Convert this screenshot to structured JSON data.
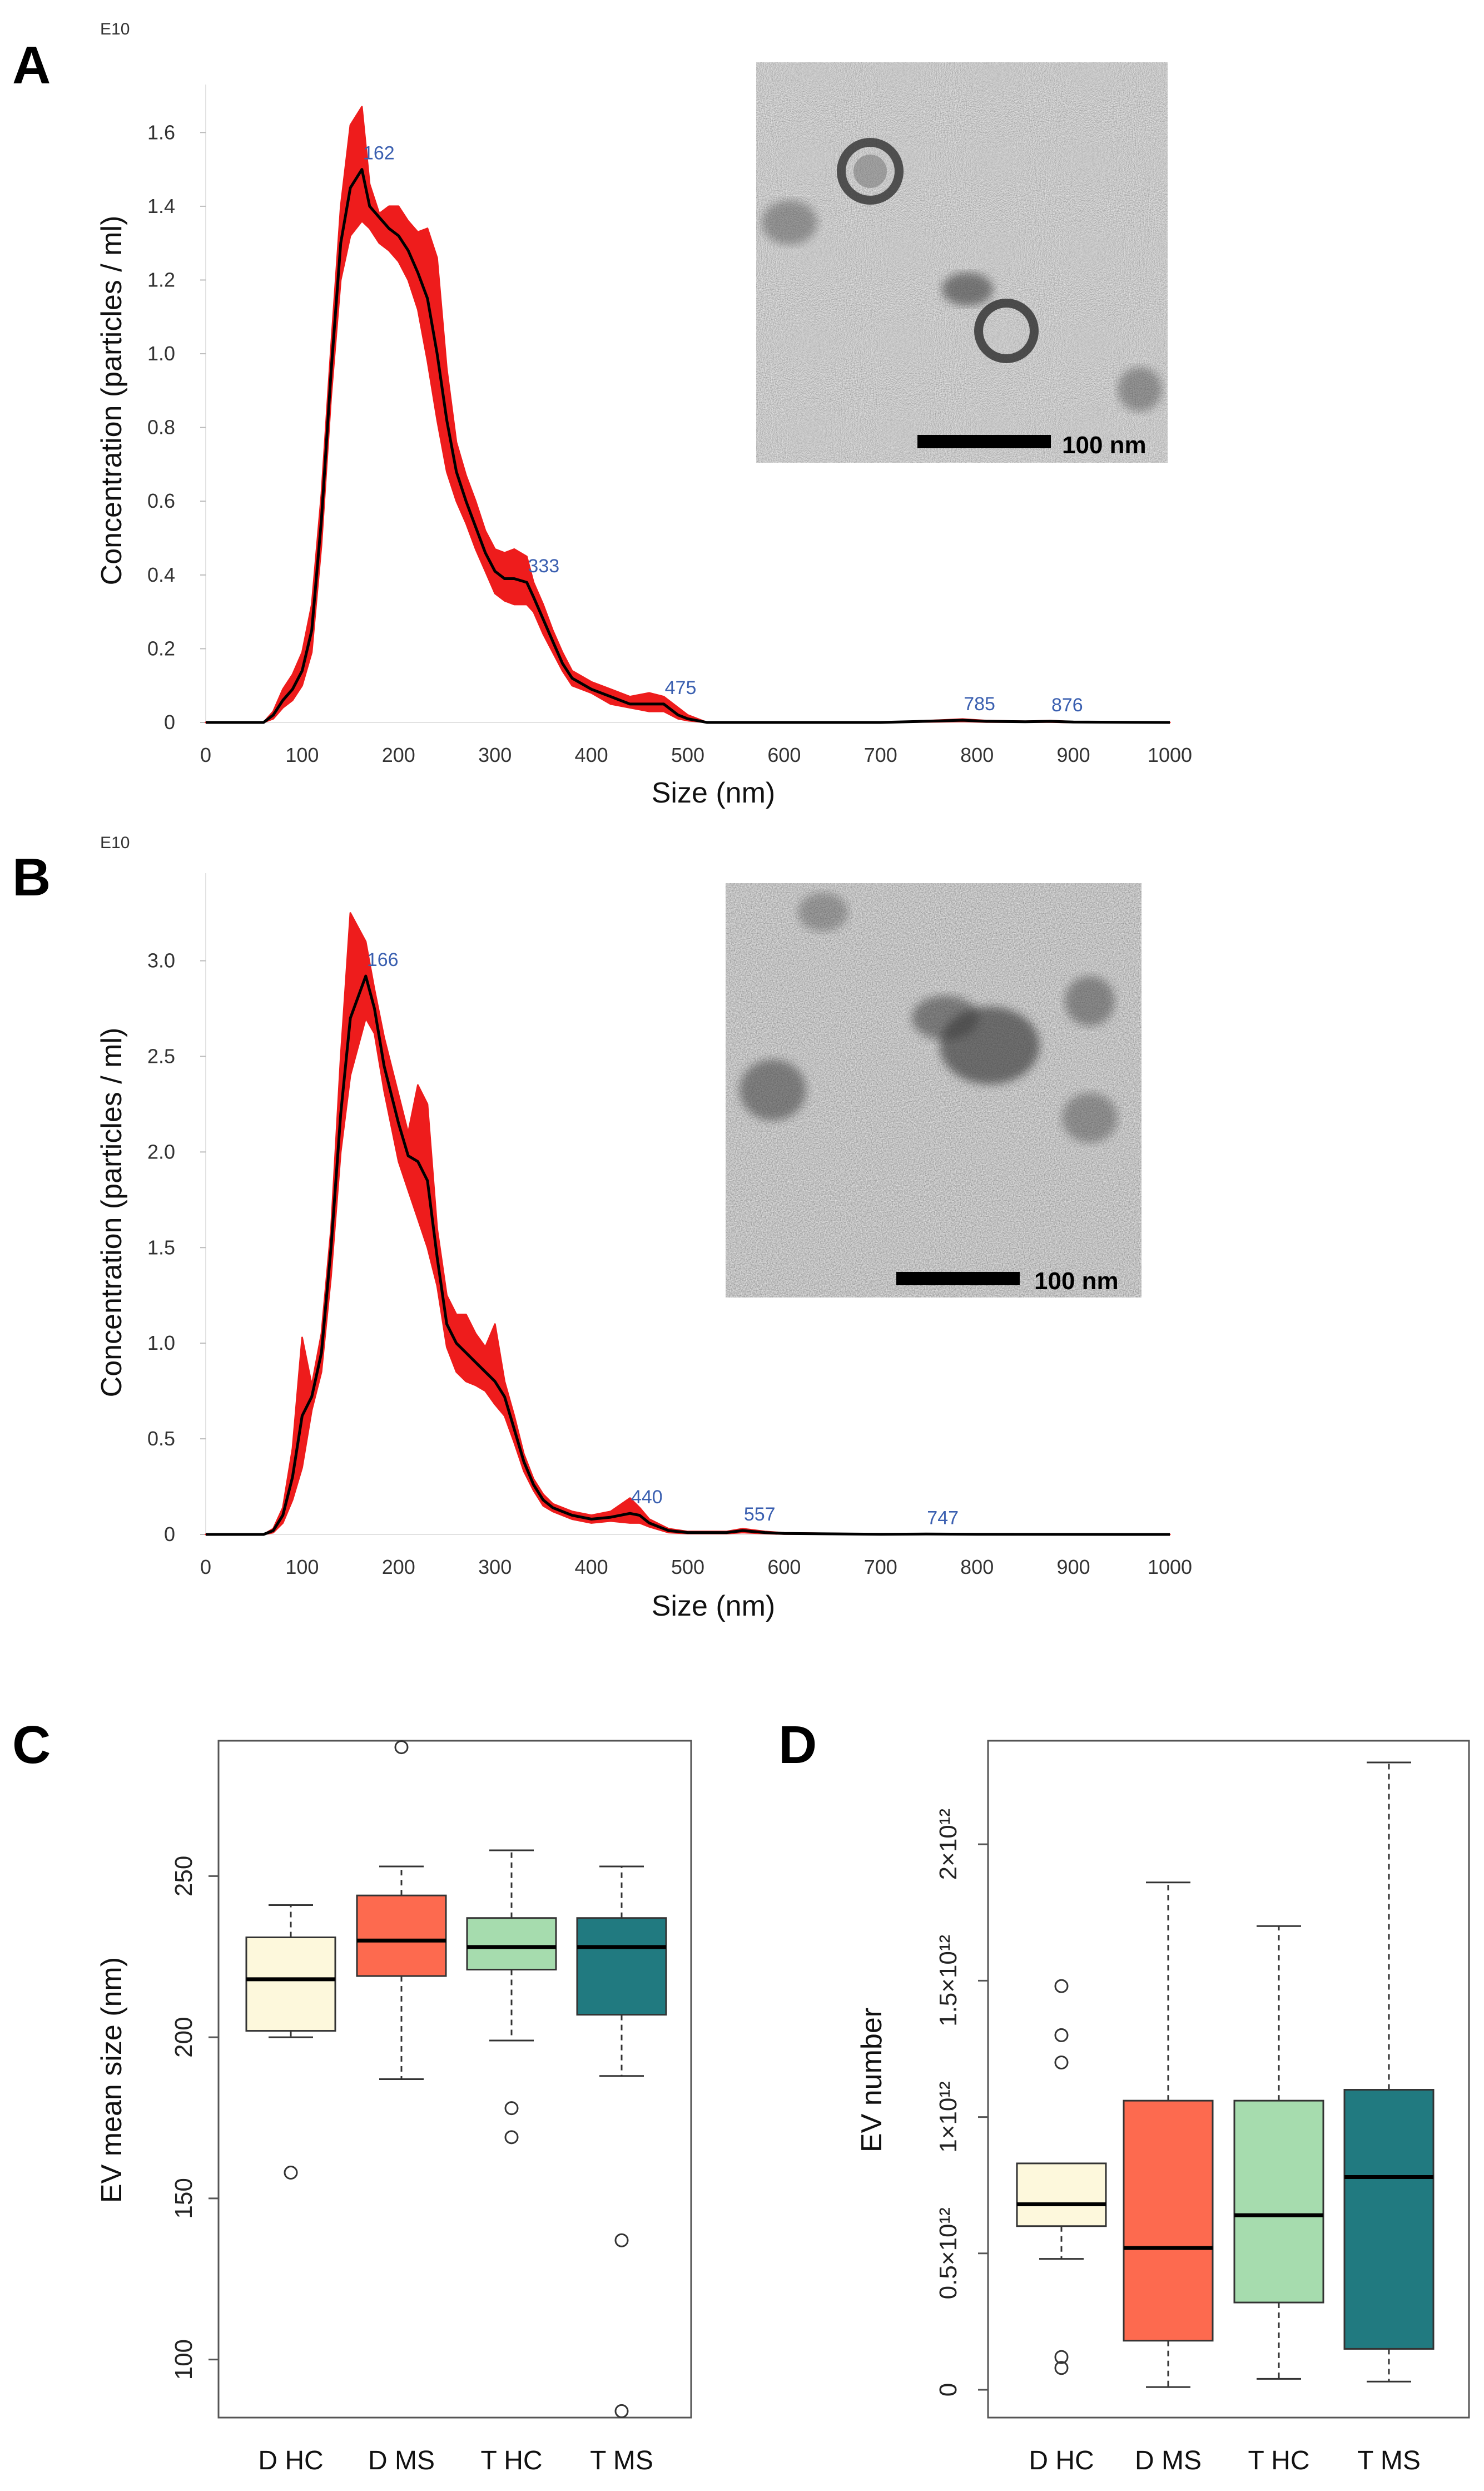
{
  "panels": {
    "A": "A",
    "B": "B",
    "C": "C",
    "D": "D"
  },
  "chart_data": [
    {
      "id": "A",
      "type": "area",
      "exponent_label": "E10",
      "xlabel": "Size (nm)",
      "ylabel": "Concentration (particles / ml)",
      "xlim": [
        0,
        1000
      ],
      "ylim": [
        0,
        1.7
      ],
      "xticks": [
        0,
        100,
        200,
        300,
        400,
        500,
        600,
        700,
        800,
        900,
        1000
      ],
      "yticks": [
        0,
        0.2,
        0.4,
        0.6,
        0.8,
        1.0,
        1.2,
        1.4,
        1.6
      ],
      "ytick_labels": [
        "0",
        "0.2",
        "0.4",
        "0.6",
        "0.8",
        "1.0",
        "1.2",
        "1.4",
        "1.6"
      ],
      "series": [
        {
          "name": "mean",
          "x": [
            0,
            60,
            70,
            80,
            90,
            100,
            110,
            120,
            130,
            140,
            150,
            162,
            170,
            180,
            190,
            200,
            210,
            220,
            230,
            240,
            250,
            260,
            270,
            280,
            290,
            300,
            310,
            320,
            333,
            340,
            350,
            360,
            370,
            380,
            400,
            420,
            440,
            460,
            475,
            490,
            500,
            520,
            600,
            700,
            760,
            785,
            810,
            850,
            876,
            900,
            1000
          ],
          "y": [
            0,
            0,
            0.02,
            0.06,
            0.09,
            0.14,
            0.25,
            0.55,
            0.95,
            1.3,
            1.45,
            1.5,
            1.4,
            1.37,
            1.34,
            1.32,
            1.28,
            1.22,
            1.15,
            1.0,
            0.82,
            0.68,
            0.6,
            0.53,
            0.46,
            0.41,
            0.39,
            0.39,
            0.38,
            0.34,
            0.28,
            0.22,
            0.16,
            0.12,
            0.09,
            0.07,
            0.05,
            0.05,
            0.05,
            0.02,
            0.01,
            0,
            0,
            0,
            0.004,
            0.006,
            0.003,
            0.002,
            0.003,
            0.001,
            0
          ]
        },
        {
          "name": "error_upper",
          "y": [
            0,
            0,
            0.03,
            0.09,
            0.13,
            0.19,
            0.32,
            0.62,
            1.02,
            1.4,
            1.62,
            1.67,
            1.46,
            1.38,
            1.4,
            1.4,
            1.36,
            1.33,
            1.34,
            1.26,
            0.96,
            0.76,
            0.67,
            0.6,
            0.52,
            0.47,
            0.46,
            0.47,
            0.45,
            0.38,
            0.32,
            0.25,
            0.19,
            0.14,
            0.11,
            0.09,
            0.07,
            0.08,
            0.07,
            0.04,
            0.02,
            0,
            0,
            0,
            0.006,
            0.009,
            0.005,
            0.003,
            0.005,
            0.002,
            0
          ]
        },
        {
          "name": "error_lower",
          "y": [
            0,
            0,
            0.01,
            0.04,
            0.06,
            0.1,
            0.19,
            0.48,
            0.88,
            1.2,
            1.32,
            1.36,
            1.34,
            1.3,
            1.28,
            1.25,
            1.2,
            1.12,
            0.98,
            0.82,
            0.68,
            0.6,
            0.54,
            0.47,
            0.41,
            0.35,
            0.33,
            0.32,
            0.32,
            0.3,
            0.24,
            0.19,
            0.14,
            0.1,
            0.08,
            0.05,
            0.04,
            0.03,
            0.03,
            0.01,
            0.005,
            0,
            0,
            0,
            0.002,
            0.003,
            0.001,
            0.001,
            0.001,
            0,
            0
          ]
        }
      ],
      "annotations": [
        {
          "text": "162",
          "x": 162,
          "y": 1.5
        },
        {
          "text": "333",
          "x": 333,
          "y": 0.38
        },
        {
          "text": "475",
          "x": 475,
          "y": 0.05
        },
        {
          "text": "785",
          "x": 785,
          "y": 0.006
        },
        {
          "text": "876",
          "x": 876,
          "y": 0.003
        }
      ],
      "inset": {
        "scale_bar_label": "100 nm"
      }
    },
    {
      "id": "B",
      "type": "area",
      "exponent_label": "E10",
      "xlabel": "Size (nm)",
      "ylabel": "Concentration (particles / ml)",
      "xlim": [
        0,
        1000
      ],
      "ylim": [
        0,
        3.4
      ],
      "xticks": [
        0,
        100,
        200,
        300,
        400,
        500,
        600,
        700,
        800,
        900,
        1000
      ],
      "yticks": [
        0,
        0.5,
        1.0,
        1.5,
        2.0,
        2.5,
        3.0
      ],
      "ytick_labels": [
        "0",
        "0.5",
        "1.0",
        "1.5",
        "2.0",
        "2.5",
        "3.0"
      ],
      "series": [
        {
          "name": "mean",
          "x": [
            0,
            60,
            70,
            80,
            90,
            100,
            110,
            120,
            130,
            140,
            150,
            166,
            175,
            185,
            200,
            210,
            220,
            230,
            240,
            250,
            260,
            270,
            280,
            290,
            300,
            310,
            320,
            330,
            340,
            350,
            360,
            380,
            400,
            420,
            440,
            450,
            460,
            480,
            500,
            540,
            557,
            580,
            600,
            700,
            747,
            800,
            1000
          ],
          "y": [
            0,
            0,
            0.02,
            0.1,
            0.3,
            0.62,
            0.72,
            0.95,
            1.5,
            2.2,
            2.7,
            2.92,
            2.75,
            2.45,
            2.15,
            1.98,
            1.95,
            1.85,
            1.45,
            1.1,
            1.0,
            0.95,
            0.9,
            0.85,
            0.8,
            0.72,
            0.55,
            0.38,
            0.26,
            0.18,
            0.14,
            0.1,
            0.08,
            0.09,
            0.11,
            0.1,
            0.06,
            0.02,
            0.01,
            0.01,
            0.02,
            0.01,
            0.005,
            0.001,
            0.002,
            0.001,
            0
          ]
        },
        {
          "name": "error_upper",
          "y": [
            0,
            0,
            0.03,
            0.14,
            0.45,
            1.03,
            0.78,
            1.05,
            1.6,
            2.5,
            3.25,
            3.1,
            2.85,
            2.6,
            2.3,
            2.1,
            2.35,
            2.25,
            1.6,
            1.25,
            1.15,
            1.15,
            1.05,
            0.98,
            1.1,
            0.8,
            0.62,
            0.42,
            0.29,
            0.21,
            0.16,
            0.12,
            0.1,
            0.12,
            0.19,
            0.14,
            0.08,
            0.03,
            0.015,
            0.015,
            0.03,
            0.015,
            0.008,
            0.002,
            0.003,
            0.002,
            0
          ]
        },
        {
          "name": "error_lower",
          "y": [
            0,
            0,
            0.01,
            0.06,
            0.18,
            0.35,
            0.65,
            0.85,
            1.35,
            2.0,
            2.4,
            2.7,
            2.62,
            2.32,
            1.95,
            1.8,
            1.65,
            1.5,
            1.3,
            0.98,
            0.85,
            0.8,
            0.78,
            0.75,
            0.68,
            0.62,
            0.48,
            0.33,
            0.23,
            0.15,
            0.12,
            0.08,
            0.06,
            0.07,
            0.06,
            0.06,
            0.04,
            0.01,
            0.005,
            0.005,
            0.01,
            0.005,
            0.002,
            0,
            0.001,
            0,
            0
          ]
        }
      ],
      "annotations": [
        {
          "text": "166",
          "x": 166,
          "y": 2.92
        },
        {
          "text": "440",
          "x": 440,
          "y": 0.11
        },
        {
          "text": "557",
          "x": 557,
          "y": 0.02
        },
        {
          "text": "747",
          "x": 747,
          "y": 0.002
        }
      ],
      "inset": {
        "scale_bar_label": "100 nm"
      }
    },
    {
      "id": "C",
      "type": "box",
      "ylabel": "EV mean size (nm)",
      "ylim": [
        82,
        292
      ],
      "yticks": [
        100,
        150,
        200,
        250
      ],
      "ytick_labels": [
        "100",
        "150",
        "200",
        "250"
      ],
      "categories": [
        "D HC",
        "D MS",
        "T HC",
        "T MS"
      ],
      "colors": [
        "#fdf8dc",
        "#fd6a4f",
        "#a6dcae",
        "#217a80"
      ],
      "boxes": [
        {
          "whisker_low": 200,
          "q1": 202,
          "median": 218,
          "q3": 231,
          "whisker_high": 241,
          "outliers": [
            158
          ]
        },
        {
          "whisker_low": 187,
          "q1": 219,
          "median": 230,
          "q3": 244,
          "whisker_high": 253,
          "outliers": [
            290
          ]
        },
        {
          "whisker_low": 199,
          "q1": 221,
          "median": 228,
          "q3": 237,
          "whisker_high": 258,
          "outliers": [
            178,
            169
          ]
        },
        {
          "whisker_low": 188,
          "q1": 207,
          "median": 228,
          "q3": 237,
          "whisker_high": 253,
          "outliers": [
            137,
            84
          ]
        }
      ]
    },
    {
      "id": "D",
      "type": "box",
      "ylabel": "EV number",
      "ylim": [
        0,
        2.3
      ],
      "yticks": [
        0,
        0.5,
        1.0,
        1.5,
        2.0
      ],
      "ytick_labels": [
        "0",
        "0.5×10¹²",
        "1×10¹²",
        "1.5×10¹²",
        "2×10¹²"
      ],
      "categories": [
        "D HC",
        "D MS",
        "T HC",
        "T MS"
      ],
      "colors": [
        "#fdf8dc",
        "#fd6a4f",
        "#a6dcae",
        "#217a80"
      ],
      "boxes": [
        {
          "whisker_low": 0.48,
          "q1": 0.6,
          "median": 0.68,
          "q3": 0.83,
          "whisker_high": 0.83,
          "outliers": [
            1.48,
            1.3,
            1.2,
            0.12,
            0.08
          ]
        },
        {
          "whisker_low": 0.01,
          "q1": 0.18,
          "median": 0.52,
          "q3": 1.06,
          "whisker_high": 1.86,
          "outliers": []
        },
        {
          "whisker_low": 0.04,
          "q1": 0.32,
          "median": 0.64,
          "q3": 1.06,
          "whisker_high": 1.7,
          "outliers": []
        },
        {
          "whisker_low": 0.03,
          "q1": 0.15,
          "median": 0.78,
          "q3": 1.1,
          "whisker_high": 2.3,
          "outliers": []
        }
      ]
    }
  ]
}
